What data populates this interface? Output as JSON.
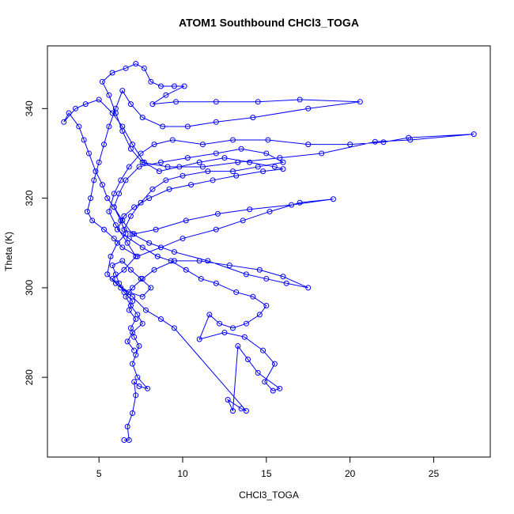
{
  "chart_data": {
    "type": "line",
    "markers": true,
    "title": "ATOM1 Southbound CHCl3_TOGA",
    "x_label": "CHCl3_TOGA",
    "y_label": "Theta (K)",
    "xlim": [
      1.92,
      28.38
    ],
    "ylim": [
      262.2,
      354.0
    ],
    "xticks": [
      5,
      10,
      15,
      20,
      25
    ],
    "yticks": [
      280,
      300,
      320,
      340
    ],
    "grid": false,
    "x": [
      6.5,
      6.8,
      6.7,
      7.0,
      7.2,
      7.1,
      7.4,
      7.9,
      7.3,
      7.0,
      7.2,
      7.4,
      7.1,
      6.9,
      7.2,
      6.8,
      7.0,
      6.5,
      6.2,
      6.0,
      5.8,
      6.4,
      6.9,
      7.5,
      8.1,
      7.6,
      6.8,
      6.0,
      5.5,
      5.7,
      6.1,
      6.6,
      6.3,
      5.9,
      5.5,
      5.2,
      4.8,
      4.4,
      4.1,
      3.8,
      3.2,
      2.9,
      3.6,
      4.2,
      5.0,
      5.8,
      6.4,
      7.0,
      7.7,
      8.6,
      9.8,
      11.0,
      12.5,
      14.0,
      15.5,
      16.0,
      14.8,
      13.2,
      11.8,
      10.5,
      9.2,
      8.0,
      7.1,
      6.5,
      6.1,
      6.8,
      7.6,
      8.5,
      9.3,
      10.2,
      11.1,
      12.0,
      13.2,
      14.2,
      15.0,
      14.6,
      13.8,
      13.0,
      12.2,
      11.6,
      11.0,
      12.5,
      13.7,
      14.8,
      15.5,
      14.9,
      15.4,
      15.8,
      14.5,
      13.9,
      13.3,
      13.0,
      12.7,
      13.5,
      13.8,
      9.5,
      8.7,
      7.8,
      7.0,
      6.3,
      5.8,
      6.5,
      7.2,
      6.7,
      6.0,
      5.6,
      5.9,
      6.3,
      6.8,
      7.5,
      8.3,
      9.4,
      11.2,
      13.0,
      15.1,
      17.5,
      20.0,
      22.0,
      23.5,
      27.4,
      23.6,
      21.5,
      18.3,
      15.8,
      13.3,
      11.2,
      9.1,
      7.6,
      6.9,
      6.4,
      6.0,
      5.6,
      5.2,
      5.8,
      6.6,
      7.2,
      7.7,
      8.1,
      8.7,
      9.5,
      10.1,
      9.0,
      8.2,
      9.6,
      12.0,
      14.5,
      17.0,
      20.6,
      17.5,
      14.2,
      12.0,
      10.3,
      8.8,
      7.6,
      6.9,
      6.4,
      6.0,
      5.6,
      5.3,
      5.0,
      4.7,
      4.5,
      4.3,
      4.6,
      5.3,
      5.9,
      6.4,
      7.3,
      8.7,
      10.0,
      12.0,
      13.6,
      15.2,
      17.0,
      19.0,
      16.5,
      14.0,
      12.1,
      10.2,
      8.4,
      7.1,
      6.5,
      6.9,
      7.5,
      8.2,
      9.0,
      10.0,
      11.5,
      13.0,
      14.5,
      16.0,
      15.0,
      13.5,
      12.0,
      10.3,
      8.7,
      7.4,
      6.6,
      6.2,
      5.9,
      6.4,
      7.0,
      8.0,
      9.5,
      11.5,
      13.8,
      15.0,
      16.2,
      17.5,
      16.0,
      14.6,
      12.8,
      11.0,
      9.5,
      8.3,
      7.6,
      7.0,
      6.6,
      6.9,
      7.3,
      7.6,
      7.0,
      6.7,
      7.1
    ],
    "series": [
      {
        "color": "#0000ff",
        "values": [
          266,
          266,
          269,
          272,
          276,
          279,
          278,
          277.5,
          280,
          283,
          285,
          287,
          289,
          291,
          293,
          295,
          297,
          299,
          301,
          303,
          305,
          306,
          304,
          302,
          300,
          298,
          299,
          301,
          303,
          307,
          310,
          312,
          315,
          318,
          320,
          323,
          326,
          330,
          333,
          336,
          339,
          337,
          340,
          341,
          342,
          339,
          336,
          332,
          328,
          326,
          327,
          328,
          329,
          328,
          327,
          326.5,
          326,
          325,
          324,
          323,
          322,
          320,
          318,
          316,
          313,
          311,
          309,
          307,
          306,
          304,
          302,
          301,
          299,
          298,
          296,
          294,
          292,
          291,
          292,
          294,
          288.5,
          290,
          289,
          286,
          283,
          279,
          277,
          277.5,
          281,
          284,
          287,
          272.5,
          275,
          273,
          272.5,
          291,
          293,
          295,
          298,
          300,
          302,
          304,
          307,
          310,
          314,
          317,
          321,
          324,
          327,
          330,
          332,
          333,
          332,
          333,
          333,
          332,
          332,
          332.5,
          333.5,
          334.3,
          333,
          332.6,
          330,
          329,
          328,
          327,
          327,
          328,
          331,
          335,
          339,
          343,
          346,
          348,
          349,
          350,
          349,
          346,
          345,
          345,
          345,
          343,
          341,
          341.5,
          341.5,
          341.5,
          342,
          341.5,
          340,
          338,
          337,
          336,
          336,
          338,
          341,
          344,
          340,
          336,
          332,
          328,
          324,
          320,
          317,
          315,
          313,
          311,
          309,
          307,
          309,
          311,
          313,
          315,
          317,
          319,
          319.8,
          318.5,
          317.5,
          316.5,
          315,
          313,
          312,
          313,
          316,
          319,
          322,
          324,
          325,
          326,
          326,
          327,
          328,
          330,
          331,
          330,
          329,
          328,
          327,
          324,
          321,
          318,
          315,
          312,
          310,
          308,
          306,
          303,
          302,
          301,
          300,
          302.5,
          304,
          305,
          306,
          306,
          304,
          302,
          300,
          298,
          296,
          294,
          292,
          290,
          288,
          286
        ]
      }
    ]
  }
}
